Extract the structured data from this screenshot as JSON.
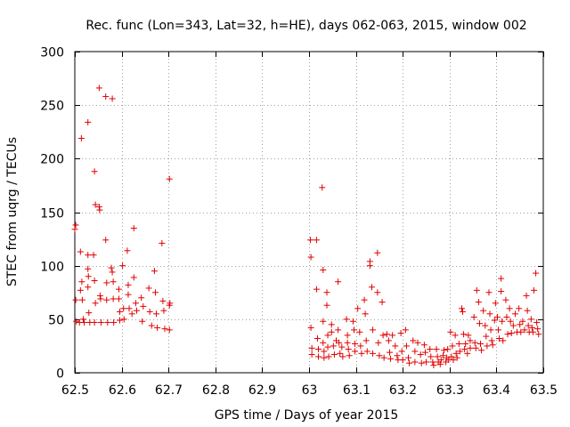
{
  "chart_data": {
    "type": "scatter",
    "title": "Rec. func (Lon=343, Lat=32, h=HE), days 062-063, 2015, window 002",
    "xlabel": "GPS time / Days of year 2015",
    "ylabel": "STEC from uqrg / TECUs",
    "xlim": [
      62.5,
      63.5
    ],
    "ylim": [
      0,
      300
    ],
    "xticks": [
      62.5,
      62.6,
      62.7,
      62.8,
      62.9,
      63.0,
      63.1,
      63.2,
      63.3,
      63.4,
      63.5
    ],
    "xtick_labels": [
      "62.5",
      "62.6",
      "62.7",
      "62.8",
      "62.9",
      "63",
      "63.1",
      "63.2",
      "63.3",
      "63.4",
      "63.5"
    ],
    "yticks": [
      0,
      50,
      100,
      150,
      200,
      250,
      300
    ],
    "ytick_labels": [
      "0",
      "50",
      "100",
      "150",
      "200",
      "250",
      "300"
    ],
    "grid": true,
    "marker": "+",
    "color": "#e00000",
    "points": [
      [
        62.5,
        134
      ],
      [
        62.502,
        138
      ],
      [
        62.502,
        68
      ],
      [
        62.503,
        48
      ],
      [
        62.51,
        47
      ],
      [
        62.514,
        219
      ],
      [
        62.512,
        113
      ],
      [
        62.512,
        77
      ],
      [
        62.515,
        85
      ],
      [
        62.516,
        68
      ],
      [
        62.518,
        50
      ],
      [
        62.52,
        47
      ],
      [
        62.528,
        234
      ],
      [
        62.528,
        110
      ],
      [
        62.528,
        97
      ],
      [
        62.529,
        90
      ],
      [
        62.528,
        80
      ],
      [
        62.53,
        56
      ],
      [
        62.532,
        47
      ],
      [
        62.54,
        110
      ],
      [
        62.542,
        188
      ],
      [
        62.544,
        157
      ],
      [
        62.542,
        86
      ],
      [
        62.544,
        65
      ],
      [
        62.542,
        47
      ],
      [
        62.552,
        266
      ],
      [
        62.552,
        155
      ],
      [
        62.553,
        152
      ],
      [
        62.554,
        72
      ],
      [
        62.555,
        69
      ],
      [
        62.556,
        47
      ],
      [
        62.566,
        258
      ],
      [
        62.566,
        124
      ],
      [
        62.568,
        84
      ],
      [
        62.568,
        68
      ],
      [
        62.57,
        47
      ],
      [
        62.58,
        256
      ],
      [
        62.578,
        98
      ],
      [
        62.58,
        94
      ],
      [
        62.582,
        85
      ],
      [
        62.582,
        69
      ],
      [
        62.583,
        47
      ],
      [
        62.594,
        78
      ],
      [
        62.594,
        69
      ],
      [
        62.596,
        57
      ],
      [
        62.596,
        49
      ],
      [
        62.602,
        100
      ],
      [
        62.604,
        60
      ],
      [
        62.605,
        50
      ],
      [
        62.612,
        114
      ],
      [
        62.614,
        82
      ],
      [
        62.614,
        73
      ],
      [
        62.616,
        60
      ],
      [
        62.622,
        55
      ],
      [
        62.626,
        135
      ],
      [
        62.626,
        89
      ],
      [
        62.63,
        65
      ],
      [
        62.632,
        58
      ],
      [
        62.642,
        70
      ],
      [
        62.646,
        62
      ],
      [
        62.644,
        48
      ],
      [
        62.658,
        79
      ],
      [
        62.66,
        57
      ],
      [
        62.664,
        44
      ],
      [
        62.67,
        95
      ],
      [
        62.672,
        75
      ],
      [
        62.674,
        55
      ],
      [
        62.676,
        42
      ],
      [
        62.686,
        121
      ],
      [
        62.688,
        67
      ],
      [
        62.69,
        58
      ],
      [
        62.692,
        41
      ],
      [
        62.702,
        181
      ],
      [
        62.703,
        65
      ],
      [
        62.702,
        63
      ],
      [
        62.702,
        40
      ],
      [
        63.003,
        124
      ],
      [
        63.004,
        108
      ],
      [
        63.004,
        42
      ],
      [
        63.006,
        23
      ],
      [
        63.006,
        17
      ],
      [
        63.016,
        124
      ],
      [
        63.016,
        78
      ],
      [
        63.018,
        32
      ],
      [
        63.02,
        22
      ],
      [
        63.02,
        15
      ],
      [
        63.028,
        173
      ],
      [
        63.03,
        96
      ],
      [
        63.03,
        48
      ],
      [
        63.03,
        28
      ],
      [
        63.032,
        20
      ],
      [
        63.032,
        14
      ],
      [
        63.038,
        75
      ],
      [
        63.038,
        63
      ],
      [
        63.04,
        35
      ],
      [
        63.04,
        24
      ],
      [
        63.042,
        15
      ],
      [
        63.048,
        45
      ],
      [
        63.048,
        38
      ],
      [
        63.052,
        25
      ],
      [
        63.054,
        17
      ],
      [
        63.058,
        30
      ],
      [
        63.062,
        85
      ],
      [
        63.062,
        40
      ],
      [
        63.064,
        28
      ],
      [
        63.066,
        18
      ],
      [
        63.07,
        24
      ],
      [
        63.072,
        15
      ],
      [
        63.08,
        50
      ],
      [
        63.082,
        35
      ],
      [
        63.082,
        28
      ],
      [
        63.084,
        22
      ],
      [
        63.086,
        16
      ],
      [
        63.094,
        48
      ],
      [
        63.096,
        40
      ],
      [
        63.098,
        27
      ],
      [
        63.098,
        20
      ],
      [
        63.104,
        60
      ],
      [
        63.108,
        38
      ],
      [
        63.11,
        25
      ],
      [
        63.112,
        18
      ],
      [
        63.118,
        68
      ],
      [
        63.12,
        55
      ],
      [
        63.122,
        30
      ],
      [
        63.124,
        20
      ],
      [
        63.13,
        104
      ],
      [
        63.13,
        100
      ],
      [
        63.134,
        80
      ],
      [
        63.136,
        40
      ],
      [
        63.136,
        18
      ],
      [
        63.146,
        112
      ],
      [
        63.146,
        75
      ],
      [
        63.148,
        28
      ],
      [
        63.15,
        16
      ],
      [
        63.156,
        66
      ],
      [
        63.158,
        35
      ],
      [
        63.16,
        14
      ],
      [
        63.166,
        36
      ],
      [
        63.17,
        30
      ],
      [
        63.172,
        19
      ],
      [
        63.174,
        13
      ],
      [
        63.178,
        35
      ],
      [
        63.184,
        25
      ],
      [
        63.188,
        16
      ],
      [
        63.19,
        12
      ],
      [
        63.196,
        37
      ],
      [
        63.198,
        20
      ],
      [
        63.2,
        12
      ],
      [
        63.206,
        40
      ],
      [
        63.208,
        25
      ],
      [
        63.212,
        14
      ],
      [
        63.214,
        9
      ],
      [
        63.222,
        30
      ],
      [
        63.226,
        20
      ],
      [
        63.226,
        10
      ],
      [
        63.232,
        28
      ],
      [
        63.238,
        17
      ],
      [
        63.24,
        9
      ],
      [
        63.246,
        26
      ],
      [
        63.248,
        19
      ],
      [
        63.25,
        10
      ],
      [
        63.258,
        22
      ],
      [
        63.26,
        15
      ],
      [
        63.264,
        10
      ],
      [
        63.266,
        7
      ],
      [
        63.272,
        22
      ],
      [
        63.274,
        15
      ],
      [
        63.276,
        10
      ],
      [
        63.28,
        8
      ],
      [
        63.282,
        12
      ],
      [
        63.286,
        16
      ],
      [
        63.288,
        21
      ],
      [
        63.292,
        10
      ],
      [
        63.294,
        14
      ],
      [
        63.296,
        22
      ],
      [
        63.298,
        12
      ],
      [
        63.302,
        38
      ],
      [
        63.304,
        15
      ],
      [
        63.306,
        25
      ],
      [
        63.308,
        12
      ],
      [
        63.312,
        35
      ],
      [
        63.314,
        18
      ],
      [
        63.316,
        14
      ],
      [
        63.32,
        27
      ],
      [
        63.322,
        20
      ],
      [
        63.326,
        60
      ],
      [
        63.328,
        57
      ],
      [
        63.33,
        36
      ],
      [
        63.332,
        22
      ],
      [
        63.334,
        27
      ],
      [
        63.338,
        18
      ],
      [
        63.34,
        35
      ],
      [
        63.344,
        30
      ],
      [
        63.344,
        23
      ],
      [
        63.352,
        52
      ],
      [
        63.354,
        28
      ],
      [
        63.356,
        23
      ],
      [
        63.358,
        77
      ],
      [
        63.362,
        66
      ],
      [
        63.364,
        46
      ],
      [
        63.366,
        27
      ],
      [
        63.368,
        21
      ],
      [
        63.372,
        58
      ],
      [
        63.376,
        44
      ],
      [
        63.378,
        34
      ],
      [
        63.38,
        25
      ],
      [
        63.384,
        75
      ],
      [
        63.386,
        55
      ],
      [
        63.388,
        40
      ],
      [
        63.39,
        30
      ],
      [
        63.392,
        26
      ],
      [
        63.396,
        49
      ],
      [
        63.398,
        65
      ],
      [
        63.402,
        52
      ],
      [
        63.404,
        40
      ],
      [
        63.406,
        32
      ],
      [
        63.41,
        88
      ],
      [
        63.41,
        76
      ],
      [
        63.412,
        48
      ],
      [
        63.414,
        30
      ],
      [
        63.42,
        68
      ],
      [
        63.422,
        52
      ],
      [
        63.424,
        36
      ],
      [
        63.428,
        60
      ],
      [
        63.43,
        48
      ],
      [
        63.432,
        37
      ],
      [
        63.436,
        44
      ],
      [
        63.44,
        55
      ],
      [
        63.444,
        38
      ],
      [
        63.448,
        60
      ],
      [
        63.45,
        45
      ],
      [
        63.452,
        38
      ],
      [
        63.456,
        48
      ],
      [
        63.46,
        40
      ],
      [
        63.464,
        72
      ],
      [
        63.466,
        58
      ],
      [
        63.468,
        44
      ],
      [
        63.47,
        38
      ],
      [
        63.474,
        50
      ],
      [
        63.476,
        42
      ],
      [
        63.478,
        38
      ],
      [
        63.48,
        77
      ],
      [
        63.484,
        93
      ],
      [
        63.486,
        47
      ],
      [
        63.488,
        41
      ],
      [
        63.49,
        36
      ]
    ]
  }
}
